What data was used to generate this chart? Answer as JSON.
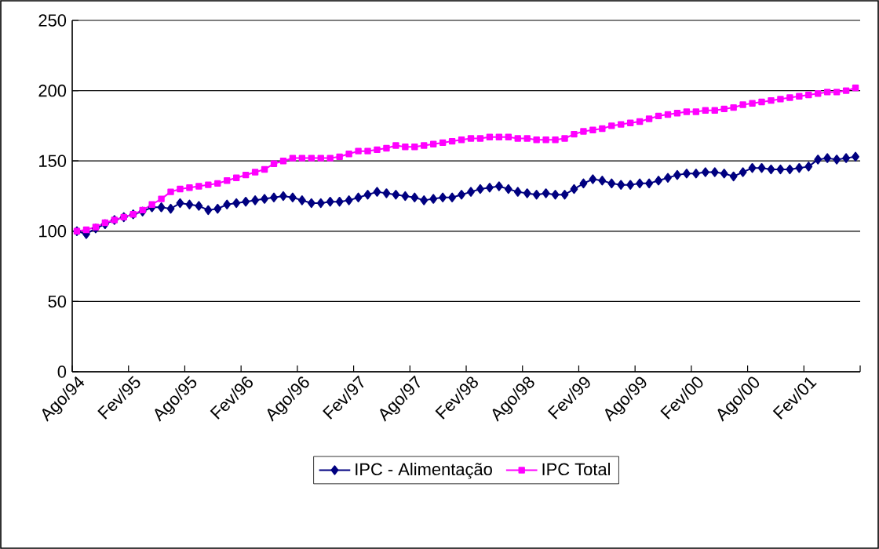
{
  "chart_data": {
    "type": "line",
    "categories": [
      "Ago/94",
      null,
      null,
      null,
      null,
      null,
      "Fev/95",
      null,
      null,
      null,
      null,
      null,
      "Ago/95",
      null,
      null,
      null,
      null,
      null,
      "Fev/96",
      null,
      null,
      null,
      null,
      null,
      "Ago/96",
      null,
      null,
      null,
      null,
      null,
      "Fev/97",
      null,
      null,
      null,
      null,
      null,
      "Ago/97",
      null,
      null,
      null,
      null,
      null,
      "Fev/98",
      null,
      null,
      null,
      null,
      null,
      "Ago/98",
      null,
      null,
      null,
      null,
      null,
      "Fev/99",
      null,
      null,
      null,
      null,
      null,
      "Ago/99",
      null,
      null,
      null,
      null,
      null,
      "Fev/00",
      null,
      null,
      null,
      null,
      null,
      "Ago/00",
      null,
      null,
      null,
      null,
      null,
      "Fev/01",
      null,
      null,
      null,
      null,
      null
    ],
    "series": [
      {
        "name": "IPC - Alimentação",
        "color": "#000080",
        "marker": "diamond",
        "values": [
          100,
          98,
          102,
          105,
          108,
          110,
          112,
          114,
          117,
          117,
          116,
          120,
          119,
          118,
          115,
          116,
          119,
          120,
          121,
          122,
          123,
          124,
          125,
          124,
          122,
          120,
          120,
          121,
          121,
          122,
          124,
          126,
          128,
          127,
          126,
          125,
          124,
          122,
          123,
          124,
          124,
          126,
          128,
          130,
          131,
          132,
          130,
          128,
          127,
          126,
          127,
          126,
          126,
          130,
          134,
          137,
          136,
          134,
          133,
          133,
          134,
          134,
          136,
          138,
          140,
          141,
          141,
          142,
          142,
          141,
          139,
          142,
          145,
          145,
          144,
          144,
          144,
          145,
          146,
          151,
          152,
          151,
          152,
          153
        ]
      },
      {
        "name": "IPC Total",
        "color": "#ff00ff",
        "marker": "square",
        "values": [
          100,
          101,
          103,
          106,
          108,
          110,
          112,
          115,
          119,
          123,
          128,
          130,
          131,
          132,
          133,
          134,
          136,
          138,
          140,
          142,
          144,
          148,
          150,
          152,
          152,
          152,
          152,
          152,
          153,
          155,
          157,
          157,
          158,
          159,
          161,
          160,
          160,
          161,
          162,
          163,
          164,
          165,
          166,
          166,
          167,
          167,
          167,
          166,
          166,
          165,
          165,
          165,
          166,
          169,
          171,
          172,
          173,
          175,
          176,
          177,
          178,
          180,
          182,
          183,
          184,
          185,
          185,
          186,
          186,
          187,
          188,
          190,
          191,
          192,
          193,
          194,
          195,
          196,
          197,
          198,
          199,
          199,
          200,
          202
        ]
      }
    ],
    "ylim": [
      0,
      250
    ],
    "yticks": [
      0,
      50,
      100,
      150,
      200,
      250
    ],
    "grid": "y",
    "legend": "bottom"
  }
}
